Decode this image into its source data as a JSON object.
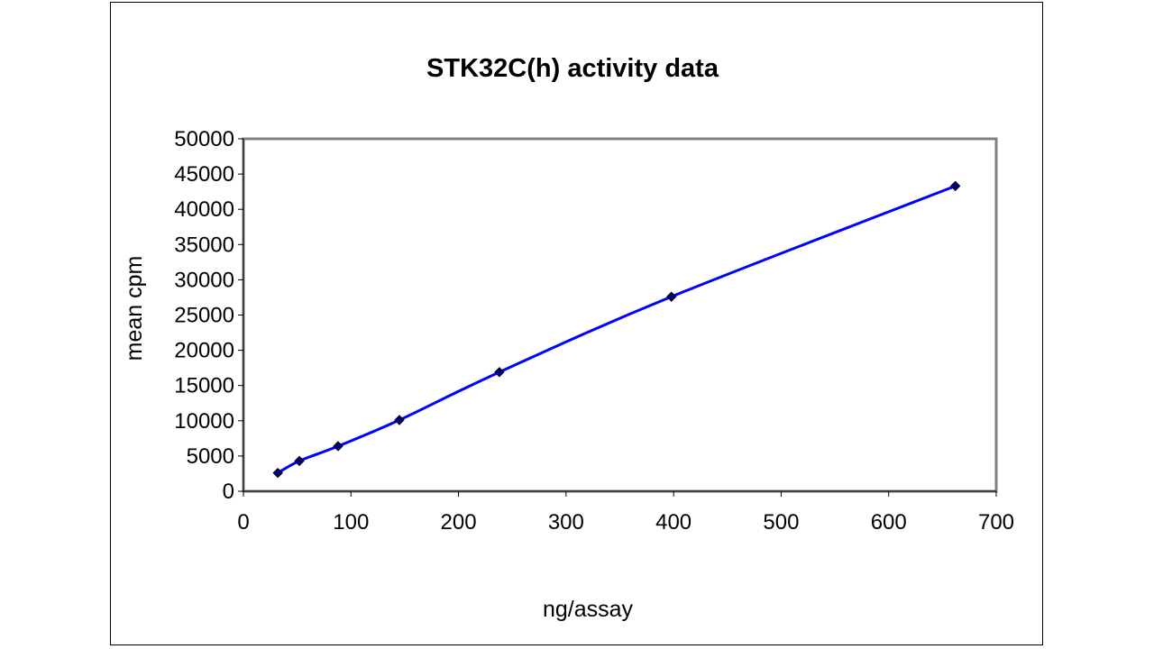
{
  "chart_data": {
    "type": "line",
    "title": "STK32C(h) activity data",
    "xlabel": "ng/assay",
    "ylabel": "mean cpm",
    "xlim": [
      0,
      700
    ],
    "ylim": [
      0,
      50000
    ],
    "xticks": [
      0,
      100,
      200,
      300,
      400,
      500,
      600,
      700
    ],
    "yticks": [
      0,
      5000,
      10000,
      15000,
      20000,
      25000,
      30000,
      35000,
      40000,
      45000,
      50000
    ],
    "grid": false,
    "legend": "none",
    "series": [
      {
        "name": "STK32C(h)",
        "color": "#0000ff",
        "marker": "diamond",
        "marker_color": "#000080",
        "smooth": true,
        "x": [
          32,
          52,
          88,
          145,
          238,
          398,
          662
        ],
        "y": [
          2600,
          4300,
          6400,
          10100,
          16900,
          27600,
          43300
        ]
      }
    ]
  }
}
